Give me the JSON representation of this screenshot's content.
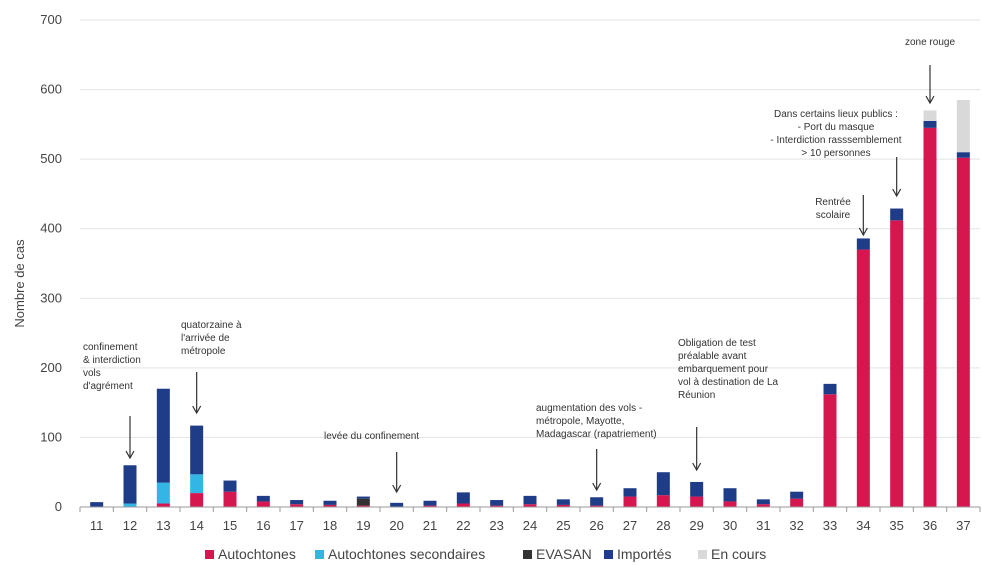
{
  "chart_data": {
    "type": "bar",
    "stacked": true,
    "title": "",
    "xlabel": "",
    "ylabel": "Nombre de cas",
    "ylim": [
      0,
      700
    ],
    "yticks": [
      0,
      100,
      200,
      300,
      400,
      500,
      600,
      700
    ],
    "grid": true,
    "legend_position": "bottom",
    "categories": [
      "11",
      "12",
      "13",
      "14",
      "15",
      "16",
      "17",
      "18",
      "19",
      "20",
      "21",
      "22",
      "23",
      "24",
      "25",
      "26",
      "27",
      "28",
      "29",
      "30",
      "31",
      "32",
      "33",
      "34",
      "35",
      "36",
      "37"
    ],
    "series": [
      {
        "name": "Autochtones",
        "color": "#d6174f",
        "values": [
          0,
          0,
          5,
          20,
          22,
          8,
          4,
          3,
          2,
          0,
          2,
          5,
          2,
          4,
          3,
          2,
          15,
          17,
          15,
          8,
          4,
          12,
          162,
          370,
          412,
          545,
          502
        ]
      },
      {
        "name": "Autochtones secondaires",
        "color": "#33b5e5",
        "values": [
          0,
          5,
          30,
          27,
          0,
          0,
          0,
          0,
          0,
          0,
          0,
          0,
          0,
          0,
          0,
          0,
          0,
          0,
          0,
          0,
          0,
          0,
          0,
          0,
          0,
          0,
          0
        ]
      },
      {
        "name": "EVASAN",
        "color": "#333333",
        "values": [
          0,
          0,
          0,
          0,
          0,
          0,
          0,
          0,
          10,
          0,
          0,
          0,
          0,
          0,
          0,
          0,
          0,
          0,
          0,
          0,
          0,
          0,
          0,
          0,
          0,
          0,
          0
        ]
      },
      {
        "name": "Importés",
        "color": "#1f3c88",
        "values": [
          7,
          55,
          135,
          70,
          16,
          8,
          6,
          6,
          3,
          6,
          7,
          16,
          8,
          12,
          8,
          12,
          12,
          33,
          21,
          19,
          7,
          10,
          15,
          16,
          17,
          10,
          8
        ]
      },
      {
        "name": "En cours",
        "color": "#d9d9d9",
        "values": [
          0,
          0,
          0,
          0,
          0,
          0,
          0,
          0,
          0,
          0,
          0,
          0,
          0,
          0,
          0,
          0,
          0,
          0,
          0,
          0,
          0,
          0,
          0,
          0,
          0,
          15,
          75
        ]
      }
    ],
    "annotations": [
      {
        "category": "12",
        "lines": [
          "confinement",
          "& interdiction",
          "vols",
          "d'agrément"
        ]
      },
      {
        "category": "14",
        "lines": [
          "quatorzaine à",
          "l'arrivée de",
          "métropole"
        ]
      },
      {
        "category": "20",
        "lines": [
          "levée du confinement"
        ]
      },
      {
        "category": "26",
        "lines": [
          "augmentation des vols -",
          "métropole, Mayotte,",
          "Madagascar (rapatriement)"
        ]
      },
      {
        "category": "29",
        "lines": [
          "Obligation de test",
          "préalable avant",
          "embarquement pour",
          "vol à destination de La",
          "Réunion"
        ]
      },
      {
        "category": "34",
        "lines": [
          "Rentrée",
          "scolaire"
        ]
      },
      {
        "category": "35",
        "lines": [
          "Dans certains lieux publics :",
          "- Port du masque",
          "- Interdiction rasssemblement",
          "> 10 personnes"
        ]
      },
      {
        "category": "36",
        "lines": [
          "zone rouge"
        ]
      }
    ]
  }
}
